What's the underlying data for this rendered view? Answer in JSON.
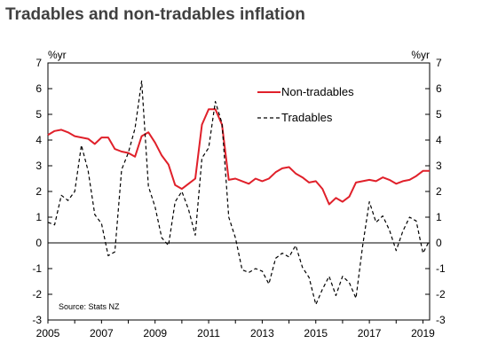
{
  "chart_data": {
    "type": "line",
    "title": "Tradables and non-tradables inflation",
    "left_unit": "%yr",
    "right_unit": "%yr",
    "source": "Source: Stats NZ",
    "ylim": [
      -3,
      7
    ],
    "y_ticks": [
      -3,
      -2,
      -1,
      0,
      1,
      2,
      3,
      4,
      5,
      6,
      7
    ],
    "xlim": [
      2005,
      2019.25
    ],
    "x_ticks": [
      2005,
      2007,
      2009,
      2011,
      2013,
      2015,
      2017,
      2019
    ],
    "legend_position": "top-right",
    "zero_line": true,
    "series": [
      {
        "name": "Non-tradables",
        "color": "#e0202a",
        "style": "solid",
        "points": [
          [
            2005.0,
            4.2
          ],
          [
            2005.25,
            4.35
          ],
          [
            2005.5,
            4.4
          ],
          [
            2005.75,
            4.3
          ],
          [
            2006.0,
            4.15
          ],
          [
            2006.25,
            4.1
          ],
          [
            2006.5,
            4.05
          ],
          [
            2006.75,
            3.85
          ],
          [
            2007.0,
            4.1
          ],
          [
            2007.25,
            4.1
          ],
          [
            2007.5,
            3.65
          ],
          [
            2007.75,
            3.55
          ],
          [
            2008.0,
            3.5
          ],
          [
            2008.25,
            3.35
          ],
          [
            2008.5,
            4.15
          ],
          [
            2008.75,
            4.3
          ],
          [
            2009.0,
            3.9
          ],
          [
            2009.25,
            3.4
          ],
          [
            2009.5,
            3.05
          ],
          [
            2009.75,
            2.25
          ],
          [
            2010.0,
            2.1
          ],
          [
            2010.25,
            2.3
          ],
          [
            2010.5,
            2.5
          ],
          [
            2010.75,
            4.6
          ],
          [
            2011.0,
            5.2
          ],
          [
            2011.25,
            5.2
          ],
          [
            2011.5,
            4.6
          ],
          [
            2011.75,
            2.45
          ],
          [
            2012.0,
            2.5
          ],
          [
            2012.25,
            2.4
          ],
          [
            2012.5,
            2.3
          ],
          [
            2012.75,
            2.5
          ],
          [
            2013.0,
            2.4
          ],
          [
            2013.25,
            2.5
          ],
          [
            2013.5,
            2.75
          ],
          [
            2013.75,
            2.9
          ],
          [
            2014.0,
            2.95
          ],
          [
            2014.25,
            2.7
          ],
          [
            2014.5,
            2.55
          ],
          [
            2014.75,
            2.35
          ],
          [
            2015.0,
            2.4
          ],
          [
            2015.25,
            2.1
          ],
          [
            2015.5,
            1.5
          ],
          [
            2015.75,
            1.75
          ],
          [
            2016.0,
            1.6
          ],
          [
            2016.25,
            1.8
          ],
          [
            2016.5,
            2.35
          ],
          [
            2016.75,
            2.4
          ],
          [
            2017.0,
            2.45
          ],
          [
            2017.25,
            2.4
          ],
          [
            2017.5,
            2.55
          ],
          [
            2017.75,
            2.45
          ],
          [
            2018.0,
            2.3
          ],
          [
            2018.25,
            2.4
          ],
          [
            2018.5,
            2.45
          ],
          [
            2018.75,
            2.6
          ],
          [
            2019.0,
            2.8
          ],
          [
            2019.25,
            2.8
          ]
        ]
      },
      {
        "name": "Tradables",
        "color": "#000000",
        "style": "dashed",
        "points": [
          [
            2005.0,
            0.8
          ],
          [
            2005.25,
            0.7
          ],
          [
            2005.5,
            1.85
          ],
          [
            2005.75,
            1.65
          ],
          [
            2006.0,
            2.0
          ],
          [
            2006.25,
            3.8
          ],
          [
            2006.5,
            2.8
          ],
          [
            2006.75,
            1.1
          ],
          [
            2007.0,
            0.75
          ],
          [
            2007.25,
            -0.5
          ],
          [
            2007.5,
            -0.35
          ],
          [
            2007.75,
            2.85
          ],
          [
            2008.0,
            3.5
          ],
          [
            2008.25,
            4.45
          ],
          [
            2008.5,
            6.3
          ],
          [
            2008.75,
            2.2
          ],
          [
            2009.0,
            1.4
          ],
          [
            2009.25,
            0.2
          ],
          [
            2009.5,
            -0.1
          ],
          [
            2009.75,
            1.6
          ],
          [
            2010.0,
            2.0
          ],
          [
            2010.25,
            1.3
          ],
          [
            2010.5,
            0.3
          ],
          [
            2010.75,
            3.3
          ],
          [
            2011.0,
            3.7
          ],
          [
            2011.25,
            5.5
          ],
          [
            2011.5,
            4.65
          ],
          [
            2011.75,
            1.0
          ],
          [
            2012.0,
            0.2
          ],
          [
            2012.25,
            -1.05
          ],
          [
            2012.5,
            -1.15
          ],
          [
            2012.75,
            -1.0
          ],
          [
            2013.0,
            -1.1
          ],
          [
            2013.25,
            -1.6
          ],
          [
            2013.5,
            -0.6
          ],
          [
            2013.75,
            -0.4
          ],
          [
            2014.0,
            -0.55
          ],
          [
            2014.25,
            -0.1
          ],
          [
            2014.5,
            -0.95
          ],
          [
            2014.75,
            -1.35
          ],
          [
            2015.0,
            -2.4
          ],
          [
            2015.25,
            -1.8
          ],
          [
            2015.5,
            -1.3
          ],
          [
            2015.75,
            -2.05
          ],
          [
            2016.0,
            -1.3
          ],
          [
            2016.25,
            -1.55
          ],
          [
            2016.5,
            -2.15
          ],
          [
            2016.75,
            -0.1
          ],
          [
            2017.0,
            1.6
          ],
          [
            2017.25,
            0.8
          ],
          [
            2017.5,
            1.05
          ],
          [
            2017.75,
            0.5
          ],
          [
            2018.0,
            -0.3
          ],
          [
            2018.25,
            0.45
          ],
          [
            2018.5,
            1.0
          ],
          [
            2018.75,
            0.85
          ],
          [
            2019.0,
            -0.4
          ],
          [
            2019.25,
            0.1
          ]
        ]
      }
    ]
  }
}
